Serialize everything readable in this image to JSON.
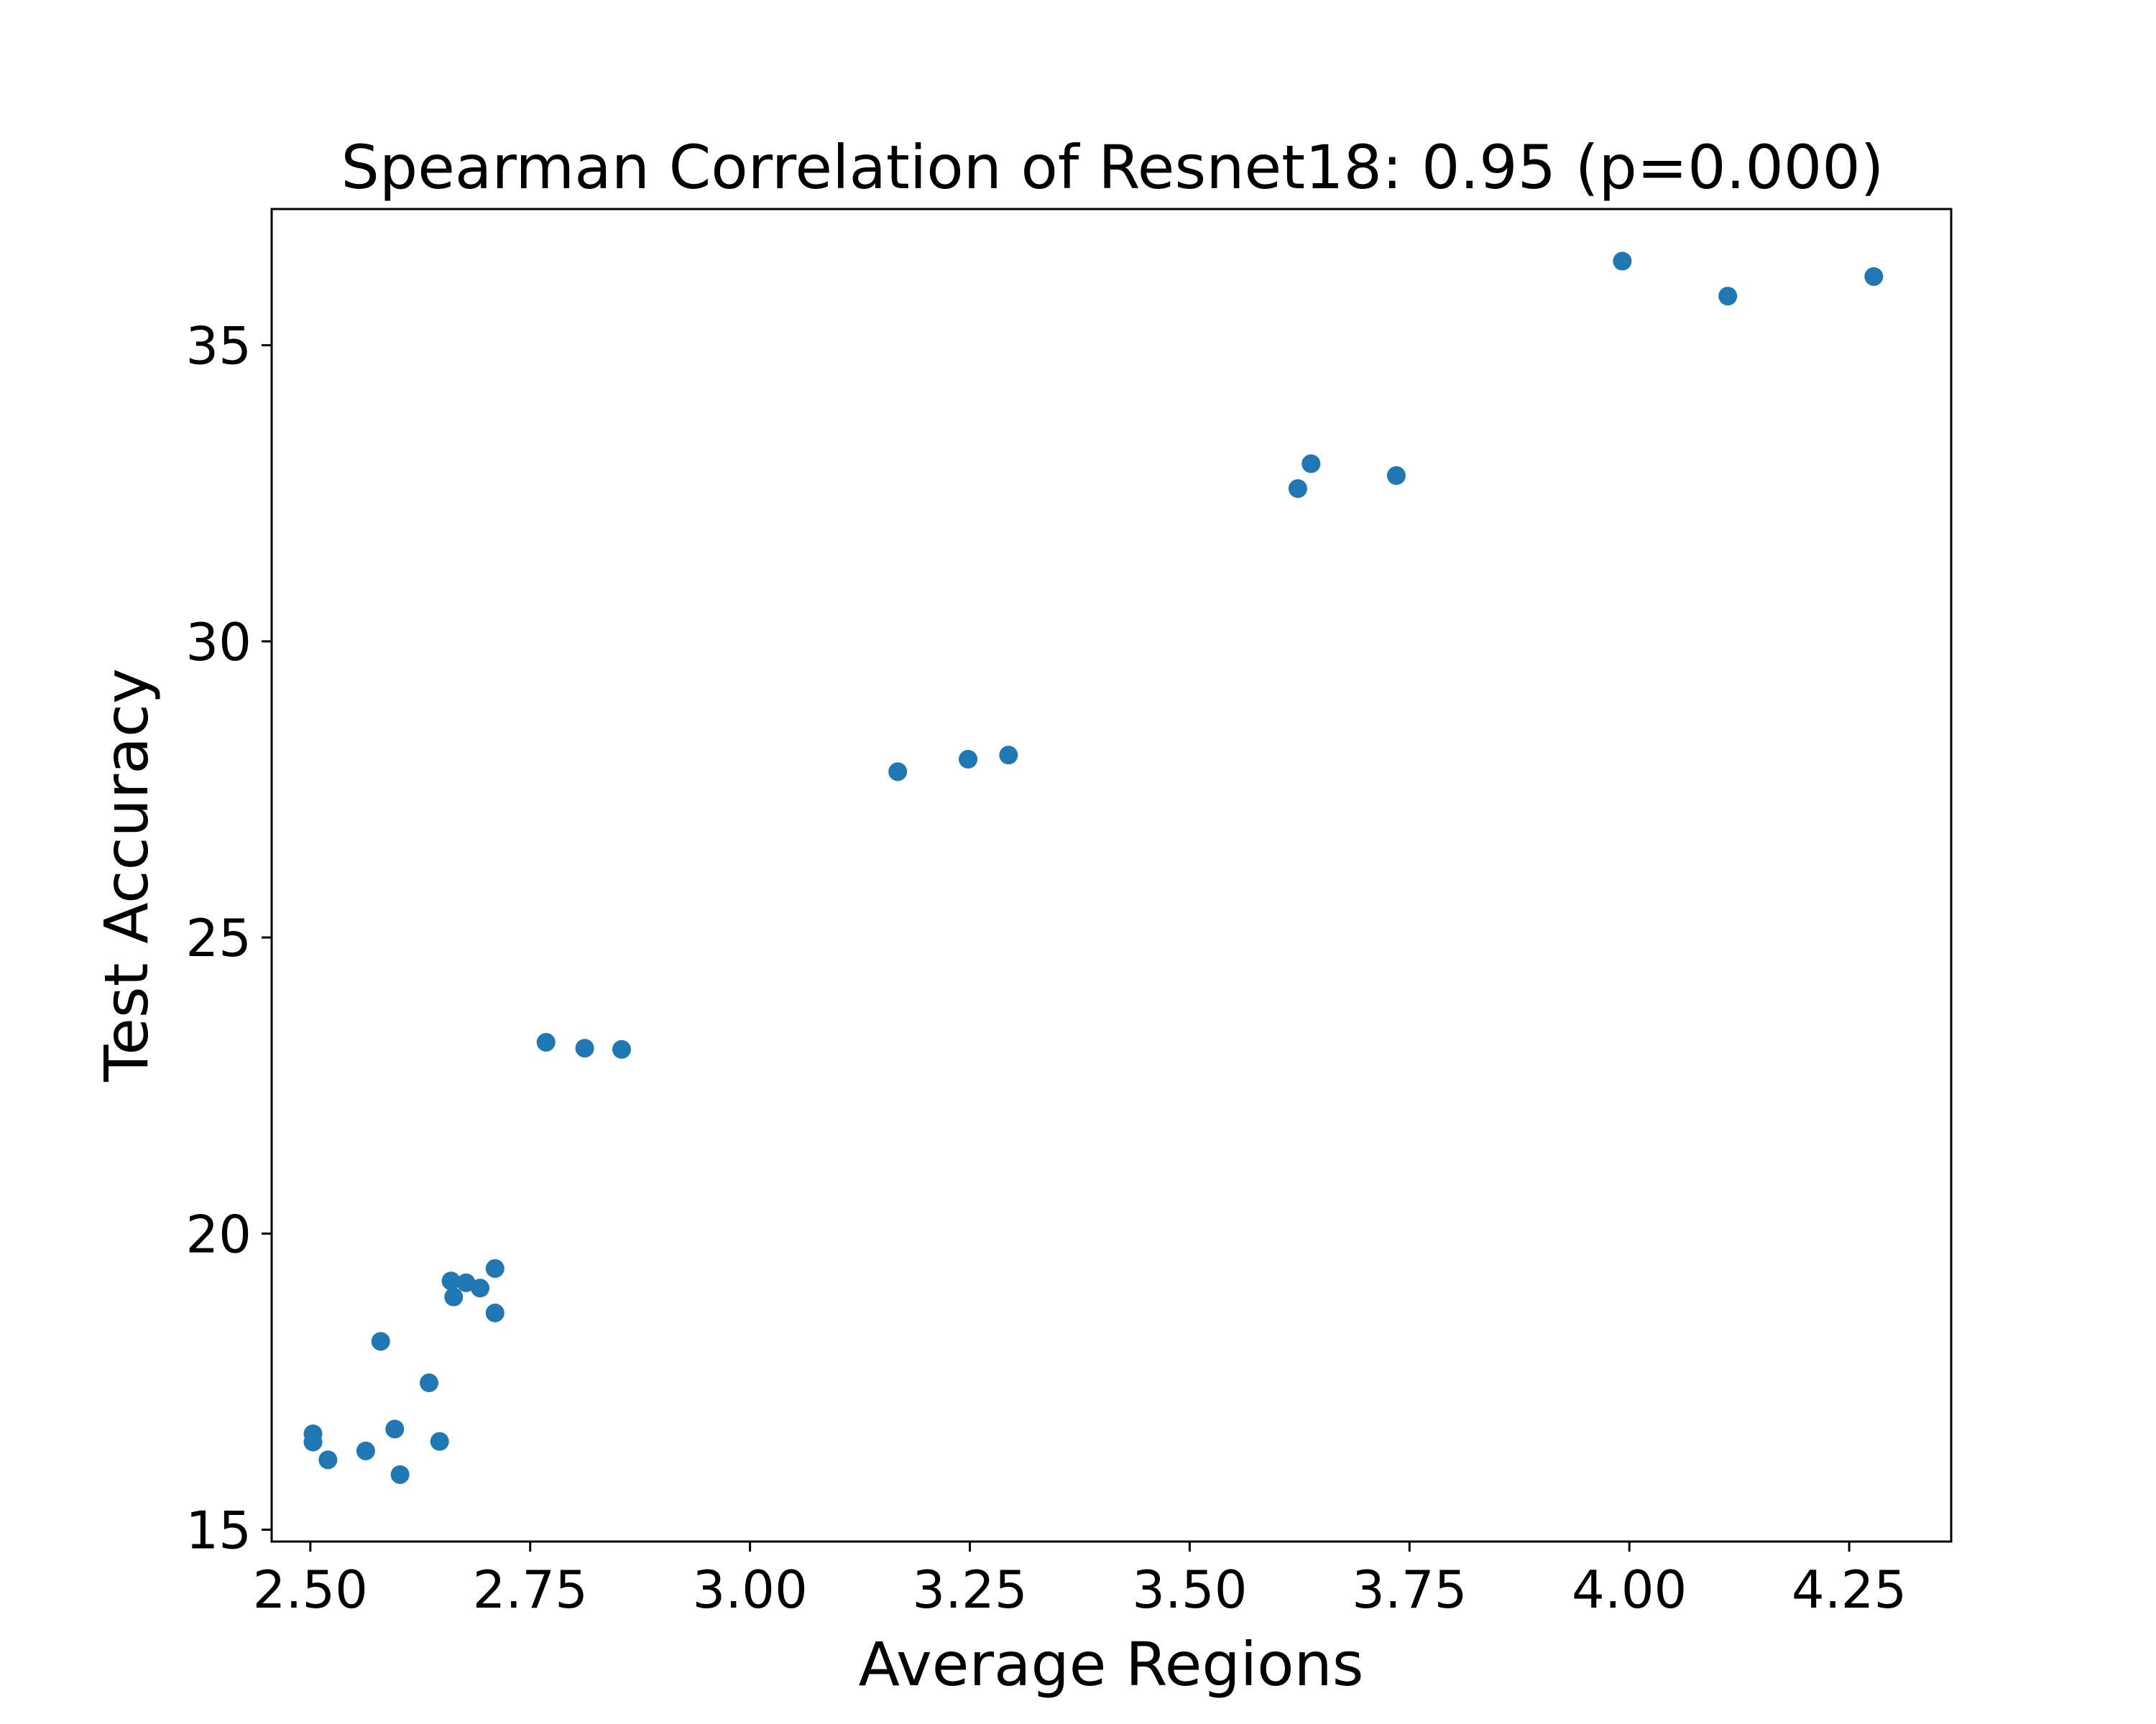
{
  "chart_data": {
    "type": "scatter",
    "title": "Spearman Correlation of Resnet18: 0.95 (p=0.000)",
    "xlabel": "Average Regions",
    "ylabel": "Test Accuracy",
    "xlim": [
      2.456,
      4.366
    ],
    "ylim": [
      14.8,
      37.3
    ],
    "xticks": [
      2.5,
      2.75,
      3.0,
      3.25,
      3.5,
      3.75,
      4.0,
      4.25
    ],
    "xtick_labels": [
      "2.50",
      "2.75",
      "3.00",
      "3.25",
      "3.50",
      "3.75",
      "4.00",
      "4.25"
    ],
    "yticks": [
      15,
      20,
      25,
      30,
      35
    ],
    "ytick_labels": [
      "15",
      "20",
      "25",
      "30",
      "35"
    ],
    "grid": false,
    "marker_color": "#1f77b4",
    "points": [
      {
        "x": 2.503,
        "y": 16.62
      },
      {
        "x": 2.503,
        "y": 16.48
      },
      {
        "x": 2.52,
        "y": 16.18
      },
      {
        "x": 2.563,
        "y": 16.33
      },
      {
        "x": 2.58,
        "y": 18.18
      },
      {
        "x": 2.596,
        "y": 16.7
      },
      {
        "x": 2.602,
        "y": 15.93
      },
      {
        "x": 2.635,
        "y": 17.48
      },
      {
        "x": 2.647,
        "y": 16.49
      },
      {
        "x": 2.66,
        "y": 19.2
      },
      {
        "x": 2.663,
        "y": 18.93
      },
      {
        "x": 2.677,
        "y": 19.17
      },
      {
        "x": 2.693,
        "y": 19.08
      },
      {
        "x": 2.71,
        "y": 19.41
      },
      {
        "x": 2.71,
        "y": 18.66
      },
      {
        "x": 2.768,
        "y": 23.23
      },
      {
        "x": 2.812,
        "y": 23.13
      },
      {
        "x": 2.854,
        "y": 23.11
      },
      {
        "x": 3.168,
        "y": 27.8
      },
      {
        "x": 3.248,
        "y": 28.01
      },
      {
        "x": 3.294,
        "y": 28.08
      },
      {
        "x": 3.623,
        "y": 32.58
      },
      {
        "x": 3.638,
        "y": 33.0
      },
      {
        "x": 3.735,
        "y": 32.8
      },
      {
        "x": 3.992,
        "y": 36.42
      },
      {
        "x": 4.112,
        "y": 35.83
      },
      {
        "x": 4.278,
        "y": 36.16
      }
    ]
  }
}
